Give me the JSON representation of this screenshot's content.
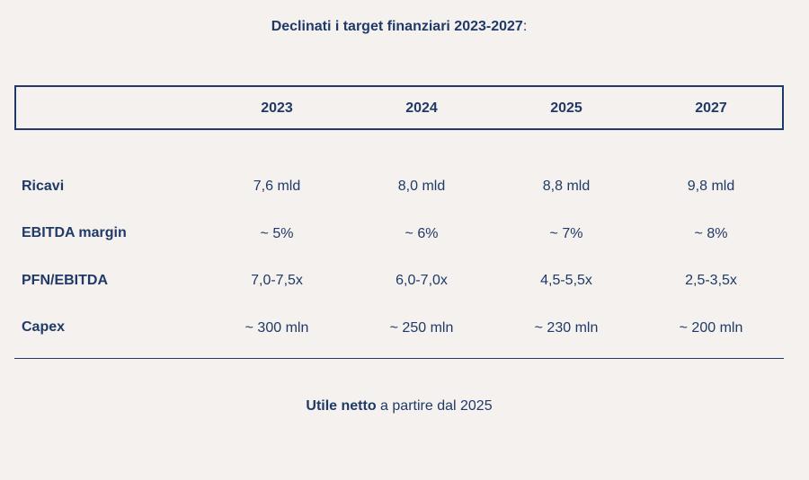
{
  "title": {
    "main": "Declinati i target finanziari 2023-2027",
    "suffix": ":"
  },
  "columns": [
    "2023",
    "2024",
    "2025",
    "2027"
  ],
  "rows": [
    {
      "label": "Ricavi",
      "values": [
        "7,6 mld",
        "8,0 mld",
        "8,8 mld",
        "9,8 mld"
      ]
    },
    {
      "label": "EBITDA margin",
      "values": [
        "~ 5%",
        "~ 6%",
        "~ 7%",
        "~ 8%"
      ]
    },
    {
      "label": "PFN/EBITDA",
      "values": [
        "7,0-7,5x",
        "6,0-7,0x",
        "4,5-5,5x",
        "2,5-3,5x"
      ]
    },
    {
      "label": "Capex",
      "values": [
        "~ 300 mln",
        "~ 250 mln",
        "~ 230 mln",
        "~ 200 mln"
      ]
    }
  ],
  "footer": {
    "bold": "Utile netto",
    "rest": " a partire dal 2025"
  }
}
